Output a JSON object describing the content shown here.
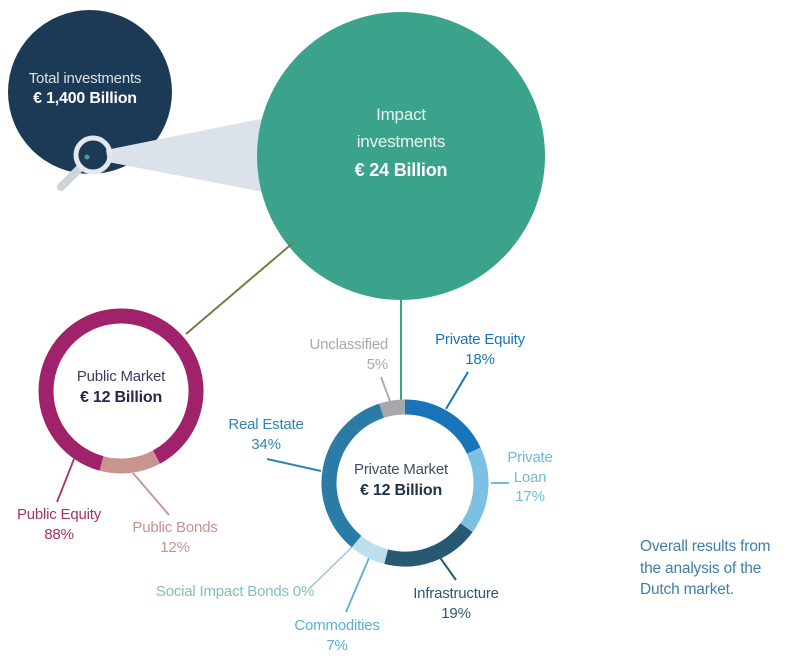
{
  "page": {
    "background": "#ffffff"
  },
  "colors": {
    "navy": "#1c3a56",
    "teal": "#3ba38b",
    "olive": "#7b7a45",
    "beam": "#dce2e9",
    "lens": "#e4e8ed",
    "handle": "#cdd4da",
    "white": "#ffffff",
    "total_text": "#d9e1e9",
    "impact_text": "#e9f6f1",
    "title_public": "#463a60",
    "value_public": "#2c2351",
    "title_private": "#3d4f63",
    "value_private": "#203449",
    "label_public_equity": "#a93267",
    "label_public_bonds": "#c5928e",
    "label_unclassified": "#a7a9ac",
    "label_private_equity": "#1a75bb",
    "label_private_loan": "#70b9de",
    "label_infrastructure": "#2b5a73",
    "label_commodities": "#58afd6",
    "label_sib": "#7fbfbc",
    "label_real_estate": "#2e86b0",
    "caption": "#3f7fa8"
  },
  "labels": {
    "total": {
      "line1": "Total investments",
      "line2": "€ 1,400 Billion"
    },
    "impact": {
      "line1": "Impact",
      "line2": "investments",
      "line3": "€ 24 Billion"
    },
    "public_market": {
      "line1": "Public Market",
      "line2": "€ 12 Billion"
    },
    "private_market": {
      "line1": "Private Market",
      "line2": "€ 12 Billion"
    },
    "public_equity": {
      "line1": "Public Equity",
      "line2": "88%"
    },
    "public_bonds": {
      "line1": "Public Bonds",
      "line2": "12%"
    },
    "unclassified": {
      "line1": "Unclassified",
      "line2": "5%"
    },
    "private_equity": {
      "line1": "Private Equity",
      "line2": "18%"
    },
    "private_loan": {
      "line1": "Private",
      "line2": "Loan",
      "line3": "17%"
    },
    "infrastructure": {
      "line1": "Infrastructure",
      "line2": "19%"
    },
    "commodities": {
      "line1": "Commodities",
      "line2": "7%"
    },
    "social_impact_bonds": {
      "line1": "Social Impact Bonds 0%"
    },
    "real_estate": {
      "line1": "Real Estate",
      "line2": "34%"
    },
    "caption": {
      "line1": "Overall results from",
      "line2": "the analysis of the",
      "line3": "Dutch market."
    }
  },
  "chart_data": [
    {
      "id": "overview",
      "type": "bubble",
      "items": [
        {
          "label": "Total investments",
          "value_eur_billion": 1400
        },
        {
          "label": "Impact investments",
          "value_eur_billion": 24
        }
      ]
    },
    {
      "id": "public",
      "type": "donut",
      "title": "Public Market",
      "value_label": "€ 12 Billion",
      "value_eur_billion": 12,
      "segments": [
        {
          "label": "Public Equity",
          "pct": 88,
          "pct_label": "88%",
          "color": "#a0226a",
          "start_deg": 195
        },
        {
          "label": "Public Bonds",
          "pct": 12,
          "pct_label": "12%",
          "color": "#c99490",
          "start_deg": 151.8
        }
      ]
    },
    {
      "id": "private",
      "type": "donut",
      "title": "Private Market",
      "value_label": "€ 12 Billion",
      "value_eur_billion": 12,
      "segments": [
        {
          "label": "Private Equity",
          "pct": 18,
          "pct_label": "18%",
          "color": "#1a74ba",
          "start_deg": 0
        },
        {
          "label": "Private Loan",
          "pct": 17,
          "pct_label": "17%",
          "color": "#7cc0e2",
          "start_deg": 64.8
        },
        {
          "label": "Infrastructure",
          "pct": 19,
          "pct_label": "19%",
          "color": "#275a72",
          "start_deg": 126
        },
        {
          "label": "Commodities",
          "pct": 7,
          "pct_label": "7%",
          "color": "#bcdeed",
          "start_deg": 194.4
        },
        {
          "label": "Social Impact Bonds",
          "pct": 0,
          "pct_label": "0%",
          "color": "#85c0bd",
          "start_deg": 219.6
        },
        {
          "label": "Real Estate",
          "pct": 34,
          "pct_label": "34%",
          "color": "#2a7ca6",
          "start_deg": 219.6
        },
        {
          "label": "Unclassified",
          "pct": 5,
          "pct_label": "5%",
          "color": "#a6a8ab",
          "start_deg": 342
        }
      ]
    }
  ]
}
